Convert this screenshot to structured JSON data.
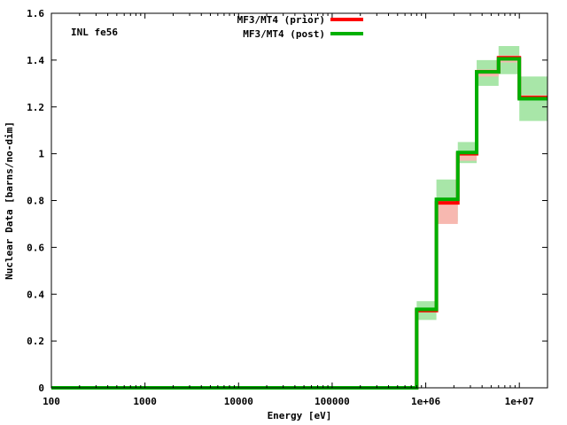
{
  "chart_data": {
    "type": "line",
    "title": "",
    "xlabel": "Energy [eV]",
    "ylabel": "Nuclear Data [barns/no-dim]",
    "annotation": "INL fe56",
    "x_scale": "log",
    "xlim": [
      100,
      20000000
    ],
    "ylim": [
      0,
      1.6
    ],
    "x_ticks": [
      {
        "value": 100,
        "label": "100"
      },
      {
        "value": 1000,
        "label": "1000"
      },
      {
        "value": 10000,
        "label": "10000"
      },
      {
        "value": 100000,
        "label": "100000"
      },
      {
        "value": 1000000,
        "label": "1e+06"
      },
      {
        "value": 10000000,
        "label": "1e+07"
      }
    ],
    "y_ticks": [
      {
        "value": 0,
        "label": "0"
      },
      {
        "value": 0.2,
        "label": "0.2"
      },
      {
        "value": 0.4,
        "label": "0.4"
      },
      {
        "value": 0.6,
        "label": "0.6"
      },
      {
        "value": 0.8,
        "label": "0.8"
      },
      {
        "value": 1.0,
        "label": "1"
      },
      {
        "value": 1.2,
        "label": "1.2"
      },
      {
        "value": 1.4,
        "label": "1.4"
      },
      {
        "value": 1.6,
        "label": "1.6"
      }
    ],
    "grid": false,
    "legend_position": "top-center",
    "bin_edges": [
      100,
      800000,
      1300000,
      2200000,
      3500000,
      6000000,
      10000000,
      20000000
    ],
    "series": [
      {
        "name": "MF3/MT4 (prior)",
        "color": "#ff0000",
        "values": [
          0,
          0.33,
          0.79,
          1.0,
          1.35,
          1.41,
          1.24
        ],
        "band_lower": [
          0,
          0.33,
          0.7,
          0.97,
          1.33,
          1.39,
          1.24
        ],
        "band_upper": [
          0,
          0.34,
          0.8,
          1.01,
          1.36,
          1.42,
          1.25
        ],
        "band_color": "#f7b8b0"
      },
      {
        "name": "MF3/MT4 (post)",
        "color": "#00b000",
        "values": [
          0,
          0.335,
          0.805,
          1.005,
          1.35,
          1.405,
          1.235
        ],
        "band_lower": [
          0,
          0.29,
          0.71,
          0.96,
          1.29,
          1.34,
          1.14
        ],
        "band_upper": [
          0,
          0.37,
          0.89,
          1.05,
          1.4,
          1.46,
          1.33
        ],
        "band_color": "#a8e6a8"
      }
    ]
  }
}
